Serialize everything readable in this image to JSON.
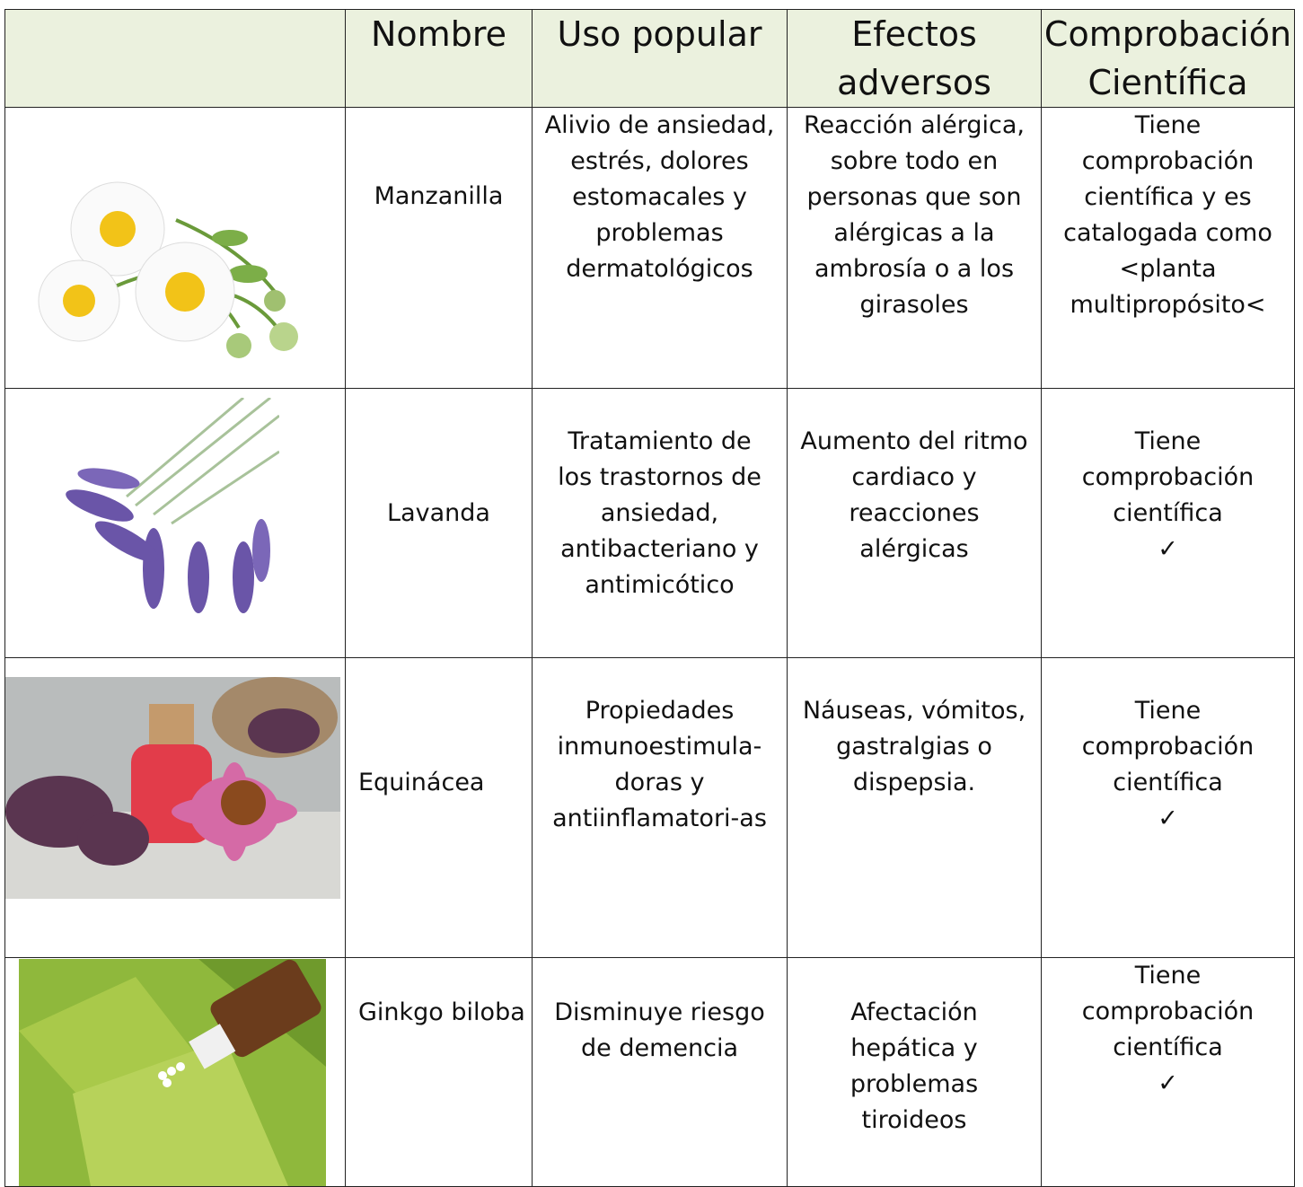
{
  "table": {
    "header": [
      [
        "Nombre"
      ],
      [
        "Uso popular"
      ],
      [
        "Efectos",
        "adversos"
      ],
      [
        "Comprobación",
        "Científica"
      ]
    ],
    "rows": [
      {
        "nombre": "Manzanilla",
        "uso": [
          "Alivio de ansiedad,",
          "estrés,  dolores",
          "estomacales y",
          "problemas",
          "dermatológicos"
        ],
        "efectos": [
          "Reacción alérgica,",
          "sobre todo en",
          "personas que son",
          "alérgicas a la",
          "ambrosía o a los",
          "girasoles"
        ],
        "comprobacion": [
          "Tiene",
          "comprobación",
          "científica y es",
          "catalogada como",
          "<planta",
          "multipropósito<"
        ]
      },
      {
        "nombre": "Lavanda",
        "uso": [
          "Tratamiento de",
          "los trastornos de",
          "ansiedad,",
          "antibacteriano y",
          "antimicótico"
        ],
        "efectos": [
          "Aumento del ritmo",
          "cardiaco y",
          "reacciones",
          "alérgicas"
        ],
        "comprobacion": [
          "Tiene",
          "comprobación",
          "científica",
          "✓"
        ]
      },
      {
        "nombre": "Equinácea",
        "uso": [
          "Propiedades",
          "inmunoestimula-",
          "doras y",
          "antiinflamatori-as"
        ],
        "efectos": [
          "Náuseas, vómitos,",
          "gastralgias o",
          "dispepsia."
        ],
        "comprobacion": [
          "Tiene",
          "comprobación",
          "científica",
          "✓"
        ]
      },
      {
        "nombre": "Ginkgo biloba",
        "uso": [
          "Disminuye riesgo",
          "de demencia"
        ],
        "efectos": [
          "Afectación",
          "hepática y",
          "problemas",
          "tiroideos"
        ],
        "comprobacion": [
          "Tiene",
          "comprobación",
          "científica",
          "✓"
        ]
      }
    ]
  }
}
